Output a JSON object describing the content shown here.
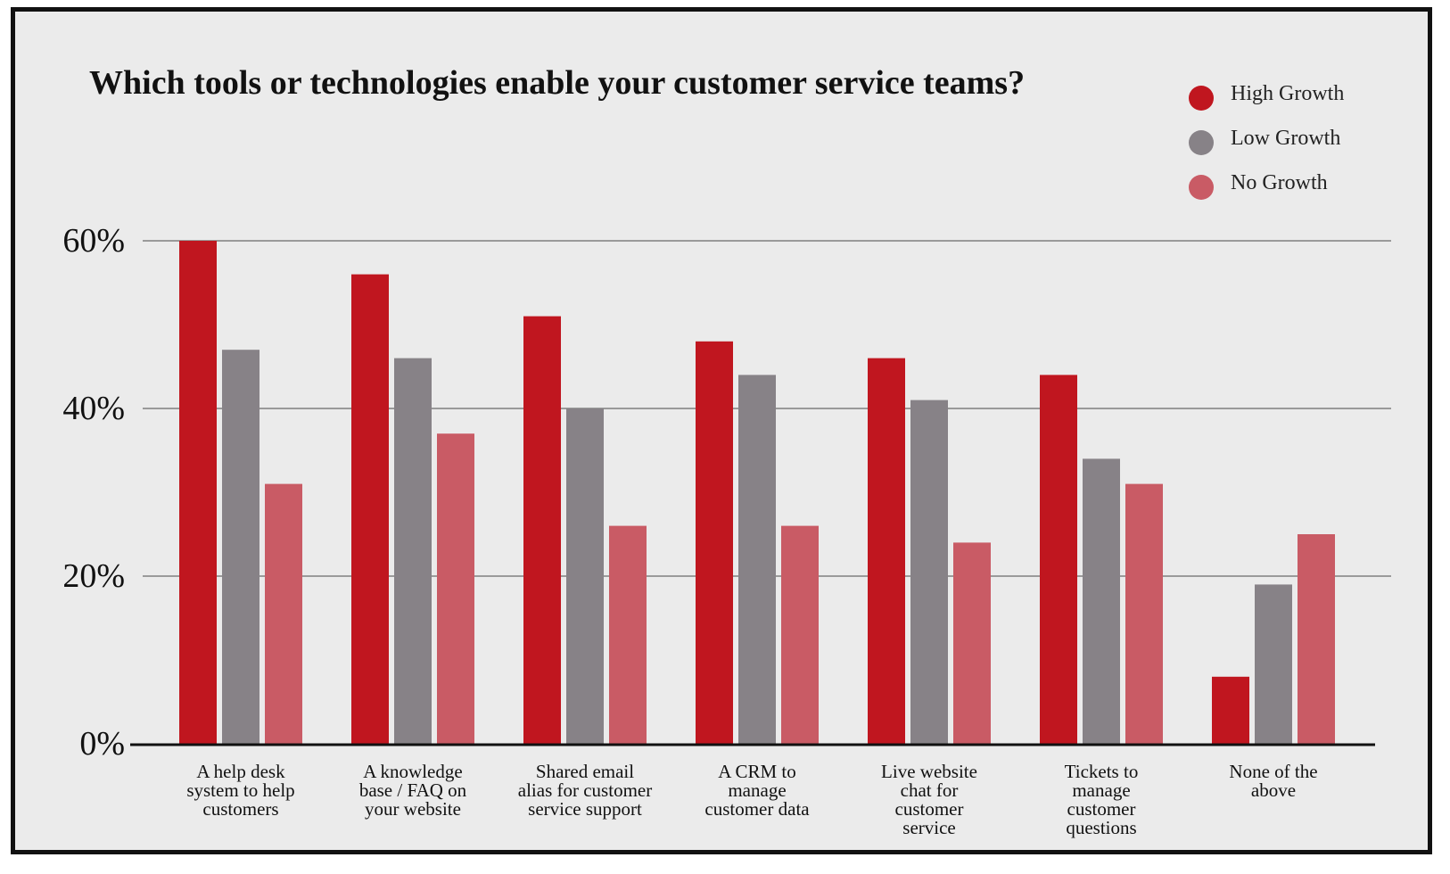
{
  "chart_data": {
    "type": "bar",
    "title": "Which tools or technologies enable your customer service teams?",
    "xlabel": "",
    "ylabel": "",
    "ylim": [
      0,
      60
    ],
    "y_ticks": [
      "0%",
      "20%",
      "40%",
      "60%"
    ],
    "y_tick_values": [
      0,
      20,
      40,
      60
    ],
    "grid": true,
    "legend_position": "top-right",
    "categories": [
      [
        "A help desk",
        "system to help",
        "customers"
      ],
      [
        "A knowledge",
        "base / FAQ on",
        "your website"
      ],
      [
        "Shared email",
        "alias for customer",
        "service support"
      ],
      [
        "A CRM to",
        "manage",
        "customer data"
      ],
      [
        "Live website",
        "chat for",
        "customer",
        "service"
      ],
      [
        "Tickets to",
        "manage",
        "customer",
        "questions"
      ],
      [
        "None of the",
        "above"
      ]
    ],
    "series": [
      {
        "name": "High Growth",
        "color": "#c0161f",
        "values": [
          60,
          56,
          51,
          48,
          46,
          44,
          8
        ]
      },
      {
        "name": "Low Growth",
        "color": "#878287",
        "values": [
          47,
          46,
          40,
          44,
          41,
          34,
          19
        ]
      },
      {
        "name": "No Growth",
        "color": "#c95b65",
        "values": [
          31,
          37,
          26,
          26,
          24,
          31,
          25
        ]
      }
    ]
  }
}
